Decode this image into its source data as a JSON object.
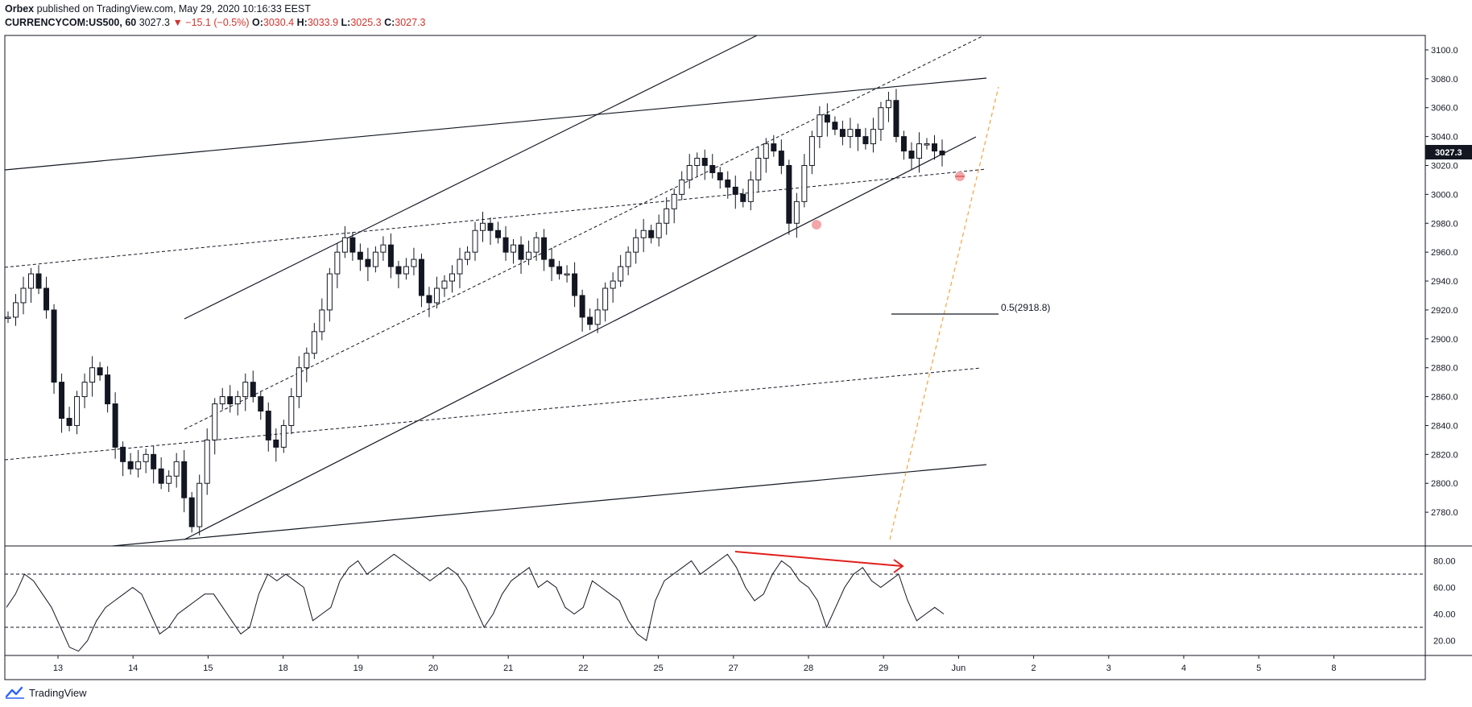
{
  "header": {
    "publisher": "Orbex",
    "published_text": "published on TradingView.com, May 29, 2020 10:16:33 EEST",
    "symbol": "CURRENCYCOM:US500, 60",
    "last": "3027.3",
    "change": "−15.1 (−0.5%)",
    "o_label": "O:",
    "o": "3030.4",
    "h_label": "H:",
    "h": "3033.9",
    "l_label": "L:",
    "l": "3025.3",
    "c_label": "C:",
    "c": "3027.3",
    "down_color": "#d1342f"
  },
  "footer": {
    "brand": "TradingView",
    "logo_icon": "tradingview-logo-icon"
  },
  "chart_data": [
    {
      "type": "line",
      "panel": "price",
      "ylim": [
        2760,
        3110
      ],
      "y_ticks": [
        "2780.0",
        "2800.0",
        "2820.0",
        "2840.0",
        "2860.0",
        "2880.0",
        "2900.0",
        "2920.0",
        "2940.0",
        "2960.0",
        "2980.0",
        "3000.0",
        "3020.0",
        "3040.0",
        "3060.0",
        "3080.0",
        "3100.0"
      ],
      "x_tick_labels": [
        "13",
        "14",
        "15",
        "18",
        "19",
        "20",
        "21",
        "22",
        "25",
        "27",
        "28",
        "29",
        "Jun",
        "2",
        "3",
        "4",
        "5",
        "8"
      ],
      "last_price_label": "3027.3",
      "candles_approx_close": [
        [
          0,
          2915
        ],
        [
          1,
          2925
        ],
        [
          2,
          2935
        ],
        [
          3,
          2945
        ],
        [
          4,
          2935
        ],
        [
          5,
          2920
        ],
        [
          6,
          2870
        ],
        [
          7,
          2845
        ],
        [
          8,
          2840
        ],
        [
          9,
          2860
        ],
        [
          10,
          2870
        ],
        [
          11,
          2880
        ],
        [
          12,
          2875
        ],
        [
          13,
          2855
        ],
        [
          14,
          2825
        ],
        [
          15,
          2815
        ],
        [
          16,
          2810
        ],
        [
          17,
          2815
        ],
        [
          18,
          2820
        ],
        [
          19,
          2810
        ],
        [
          20,
          2800
        ],
        [
          21,
          2805
        ],
        [
          22,
          2815
        ],
        [
          23,
          2790
        ],
        [
          24,
          2770
        ],
        [
          25,
          2800
        ],
        [
          26,
          2830
        ],
        [
          27,
          2855
        ],
        [
          28,
          2860
        ],
        [
          29,
          2855
        ],
        [
          30,
          2860
        ],
        [
          31,
          2870
        ],
        [
          32,
          2860
        ],
        [
          33,
          2850
        ],
        [
          34,
          2830
        ],
        [
          35,
          2825
        ],
        [
          36,
          2840
        ],
        [
          37,
          2860
        ],
        [
          38,
          2880
        ],
        [
          39,
          2890
        ],
        [
          40,
          2905
        ],
        [
          41,
          2920
        ],
        [
          42,
          2945
        ],
        [
          43,
          2960
        ],
        [
          44,
          2970
        ],
        [
          45,
          2960
        ],
        [
          46,
          2955
        ],
        [
          47,
          2950
        ],
        [
          48,
          2960
        ],
        [
          49,
          2965
        ],
        [
          50,
          2950
        ],
        [
          51,
          2945
        ],
        [
          52,
          2950
        ],
        [
          53,
          2955
        ],
        [
          54,
          2930
        ],
        [
          55,
          2925
        ],
        [
          56,
          2935
        ],
        [
          57,
          2940
        ],
        [
          58,
          2945
        ],
        [
          59,
          2955
        ],
        [
          60,
          2960
        ],
        [
          61,
          2975
        ],
        [
          62,
          2980
        ],
        [
          63,
          2975
        ],
        [
          64,
          2970
        ],
        [
          65,
          2960
        ],
        [
          66,
          2965
        ],
        [
          67,
          2955
        ],
        [
          68,
          2960
        ],
        [
          69,
          2970
        ],
        [
          70,
          2955
        ],
        [
          71,
          2950
        ],
        [
          72,
          2945
        ],
        [
          73,
          2945
        ],
        [
          74,
          2930
        ],
        [
          75,
          2915
        ],
        [
          76,
          2910
        ],
        [
          77,
          2920
        ],
        [
          78,
          2935
        ],
        [
          79,
          2940
        ],
        [
          80,
          2950
        ],
        [
          81,
          2960
        ],
        [
          82,
          2970
        ],
        [
          83,
          2975
        ],
        [
          84,
          2970
        ],
        [
          85,
          2980
        ],
        [
          86,
          2990
        ],
        [
          87,
          3000
        ],
        [
          88,
          3010
        ],
        [
          89,
          3020
        ],
        [
          90,
          3025
        ],
        [
          91,
          3020
        ],
        [
          92,
          3015
        ],
        [
          93,
          3010
        ],
        [
          94,
          3005
        ],
        [
          95,
          3000
        ],
        [
          96,
          2995
        ],
        [
          97,
          3010
        ],
        [
          98,
          3025
        ],
        [
          99,
          3035
        ],
        [
          100,
          3030
        ],
        [
          101,
          3020
        ],
        [
          102,
          2980
        ],
        [
          103,
          2995
        ],
        [
          104,
          3020
        ],
        [
          105,
          3040
        ],
        [
          106,
          3055
        ],
        [
          107,
          3050
        ],
        [
          108,
          3045
        ],
        [
          109,
          3040
        ],
        [
          110,
          3045
        ],
        [
          111,
          3040
        ],
        [
          112,
          3035
        ],
        [
          113,
          3045
        ],
        [
          114,
          3060
        ],
        [
          115,
          3065
        ],
        [
          116,
          3040
        ],
        [
          117,
          3030
        ],
        [
          118,
          3025
        ],
        [
          119,
          3035
        ],
        [
          120,
          3035
        ],
        [
          121,
          3030
        ],
        [
          122,
          3027.3
        ]
      ],
      "annotations": [
        "0.5(2918.8)"
      ]
    },
    {
      "type": "line",
      "panel": "oscillator",
      "ylim": [
        10,
        90
      ],
      "y_ticks": [
        "20.00",
        "40.00",
        "60.00",
        "80.00"
      ],
      "levels": [
        30,
        70
      ],
      "series": [
        {
          "values": [
            45,
            55,
            70,
            65,
            55,
            45,
            30,
            15,
            12,
            20,
            35,
            45,
            50,
            55,
            60,
            55,
            40,
            25,
            30,
            40,
            45,
            50,
            55,
            55,
            45,
            35,
            25,
            30,
            55,
            70,
            65,
            70,
            65,
            60,
            35,
            40,
            45,
            65,
            75,
            80,
            70,
            75,
            80,
            85,
            80,
            75,
            70,
            65,
            70,
            75,
            70,
            60,
            45,
            30,
            40,
            55,
            65,
            70,
            75,
            60,
            65,
            60,
            45,
            40,
            45,
            65,
            60,
            55,
            50,
            35,
            25,
            20,
            50,
            65,
            70,
            75,
            80,
            70,
            75,
            80,
            85,
            75,
            60,
            50,
            55,
            70,
            80,
            75,
            65,
            60,
            50,
            30,
            45,
            60,
            70,
            75,
            65,
            60,
            65,
            70,
            50,
            35,
            40,
            45,
            40
          ]
        }
      ],
      "annotations": []
    }
  ]
}
